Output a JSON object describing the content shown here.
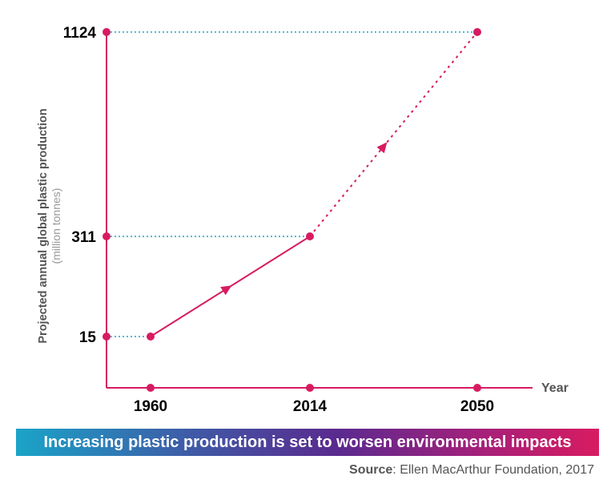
{
  "colors": {
    "accent": "#d81b60",
    "guide": "#1aa4c8",
    "axis_text": "#000000",
    "label_grey": "#666666"
  },
  "chart_data": {
    "type": "line",
    "ylabel": "Projected annual global plastic production",
    "ylabel_unit": "(million tonnes)",
    "xlabel": "Year",
    "x_ticks": [
      "1960",
      "2014",
      "2050"
    ],
    "y_ticks": [
      "15",
      "311",
      "1124"
    ],
    "series": [
      {
        "points": [
          {
            "x": 1960,
            "y": 15
          },
          {
            "x": 2014,
            "y": 311
          },
          {
            "x": 2050,
            "y": 1124
          }
        ],
        "solid_until": 2014,
        "dotted_after": 2014
      }
    ]
  },
  "banner": {
    "text": "Increasing plastic production is set to worsen environmental impacts"
  },
  "source": {
    "label": "Source",
    "text": ": Ellen MacArthur Foundation, 2017"
  }
}
